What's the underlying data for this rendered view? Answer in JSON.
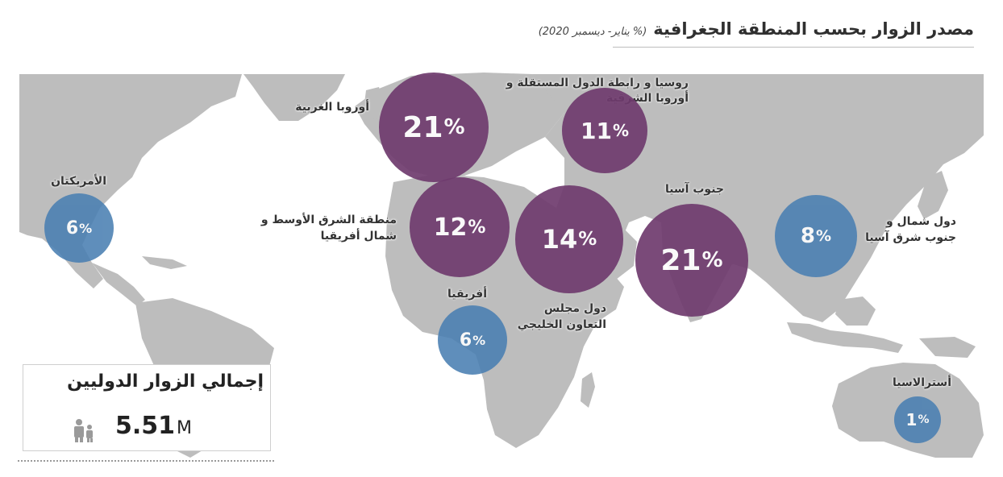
{
  "title": "مصدر الزوار بحسب المنطقة الجغرافية",
  "subtitle": "(%  يناير- ديسمبر 2020)",
  "colors": {
    "purple": "#6f3b6e",
    "blue": "#4a7fb2",
    "land": "#bdbdbd",
    "water": "#ffffff"
  },
  "chart_data": {
    "type": "bubble-map",
    "unit": "%",
    "regions": [
      {
        "name": "أوروبا الغربية",
        "value": 21,
        "color": "purple"
      },
      {
        "name": "روسيا و رابطة الدول المستقلة و أوروبا الشرقية",
        "value": 11,
        "color": "purple"
      },
      {
        "name": "منطقة الشرق الأوسط و شمال أفريقيا",
        "value": 12,
        "color": "purple"
      },
      {
        "name": "دول مجلس التعاون الخليجي",
        "value": 14,
        "color": "purple"
      },
      {
        "name": "جنوب آسيا",
        "value": 21,
        "color": "purple"
      },
      {
        "name": "الأمريكتان",
        "value": 6,
        "color": "blue"
      },
      {
        "name": "أفريقيا",
        "value": 6,
        "color": "blue"
      },
      {
        "name": "دول شمال و جنوب شرق آسيا",
        "value": 8,
        "color": "blue"
      },
      {
        "name": "أسترالاسيا",
        "value": 1,
        "color": "blue"
      }
    ]
  },
  "labels": {
    "western_europe": "أوروبا الغربية",
    "russia_line1": "روسيا و رابطة الدول المستقلة و",
    "russia_line2": "أوروبا الشرقية",
    "americas": "الأمريكتان",
    "mena_line1": "منطقة الشرق الأوسط و",
    "mena_line2": "شمال أفريقيا",
    "south_asia": "جنوب آسيا",
    "ne_asia_line1": "دول شمال و",
    "ne_asia_line2": "جنوب شرق آسيا",
    "africa": "أفريقيا",
    "gcc_line1": "دول مجلس",
    "gcc_line2": "التعاون الخليجي",
    "australasia": "أسترالاسيا"
  },
  "total": {
    "label": "إجمالي الزوار الدوليين",
    "value": "5.51",
    "unit": "M",
    "icon": "people-icon"
  }
}
